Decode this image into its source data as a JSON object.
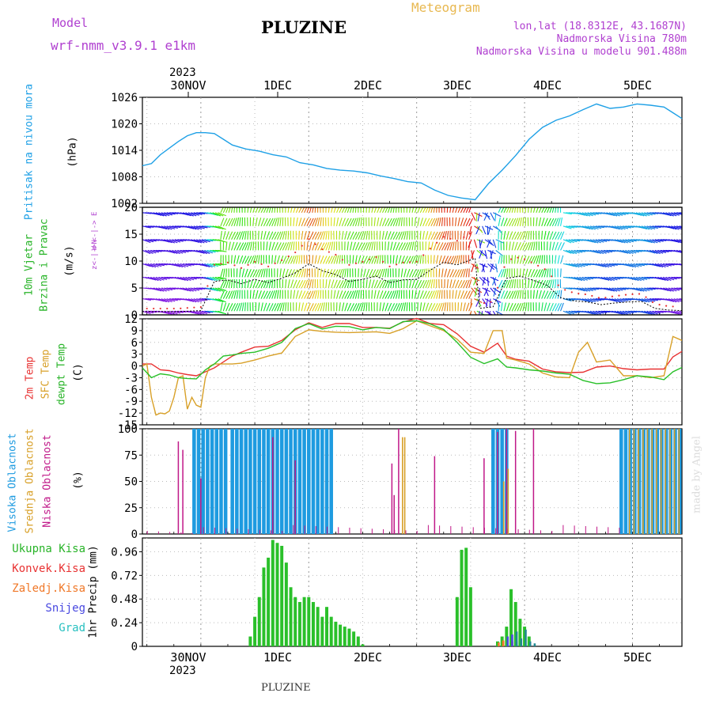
{
  "header": {
    "model_label": "Model",
    "model_name": "wrf-nmm_v3.9.1  e1km",
    "station": "PLUZINE",
    "meteogram": "Meteogram",
    "lonlat": "lon,lat (18.8312E, 43.1687N)",
    "elev": "Nadmorska Visina 780m",
    "model_elev": "Nadmorska Visina u modelu 901.488m",
    "year_top": "2023",
    "year_bottom": "2023",
    "footer_station": "PLUZINE",
    "watermark": "made by Angel"
  },
  "colors": {
    "pressure": "#1ea0e6",
    "temp2m": "#e83232",
    "sfc": "#d8a028",
    "dewpt": "#28c028",
    "cloud_high": "#1e9be0",
    "cloud_mid": "#d8a028",
    "cloud_low": "#c01888",
    "precip": "#2ac02a",
    "label_green": "#28b428",
    "label_red": "#e83232",
    "label_orange": "#f07828",
    "label_blue": "#4848e0",
    "label_teal": "#28c0c0",
    "purple": "#b040d0"
  },
  "labels": {
    "pressure": [
      "Pritisak na nivou mora",
      "(hPa)"
    ],
    "wind": [
      "10m Vjetar",
      "Brzina i Pravac",
      "(m/s)"
    ],
    "compass": "W  <-|->  E",
    "compass2": "z<-|->N",
    "temp": [
      "2m Temp",
      "SFC Temp",
      "dewpt Temp",
      "(C)"
    ],
    "cloud": [
      "Visoka Oblacnost",
      "Srednja Oblacnost",
      "Niska Oblacnost",
      "(%)"
    ],
    "precip_legend": [
      "Ukupna Kisa",
      "Konvek.Kisa",
      "Zaledj.Kisa",
      "Snijeg",
      "Grad"
    ],
    "precip_axis": "1hr Precip (mm)"
  },
  "chart_data": [
    {
      "type": "line",
      "title": "Pritisak na nivou mora",
      "ylabel": "(hPa)",
      "ylim": [
        1002,
        1026
      ],
      "yticks": [
        "1026",
        "1020",
        "1014",
        "1008",
        "1002"
      ],
      "x_days": [
        "30NOV",
        "1DEC",
        "2DEC",
        "3DEC",
        "4DEC",
        "5DEC"
      ],
      "xlim_hours": [
        -13,
        107
      ],
      "series": [
        {
          "name": "Pritisak na nivou mora",
          "x": [
            -13,
            -11,
            -9,
            -7,
            -5,
            -3,
            -1,
            0,
            1,
            3,
            5,
            7,
            10,
            13,
            16,
            19,
            22,
            25,
            28,
            31,
            34,
            37,
            40,
            43,
            46,
            49,
            52,
            55,
            58,
            61,
            64,
            67,
            70,
            73,
            76,
            79,
            82,
            85,
            88,
            91,
            94,
            97,
            100,
            103,
            105,
            107
          ],
          "values": [
            1010.5,
            1011,
            1013,
            1014.5,
            1016,
            1017.3,
            1018,
            1018,
            1018,
            1017.8,
            1016.5,
            1015.2,
            1014.3,
            1013.8,
            1013,
            1012.5,
            1011.2,
            1010.7,
            1009.9,
            1009.5,
            1009.3,
            1008.9,
            1008.2,
            1007.6,
            1006.9,
            1006.6,
            1005,
            1003.8,
            1003.2,
            1002.8,
            1006.5,
            1009.5,
            1012.8,
            1016.5,
            1019.2,
            1020.8,
            1021.8,
            1023.2,
            1024.5,
            1023.5,
            1023.8,
            1024.5,
            1024.2,
            1023.8,
            1022.5,
            1021.2
          ]
        }
      ]
    },
    {
      "type": "line",
      "title": "10m Vjetar",
      "ylabel": "(m/s)",
      "ylim": [
        0,
        20
      ],
      "yticks": [
        "20",
        "15",
        "10",
        "5",
        "0"
      ],
      "series": [
        {
          "name": "Brzina i Pravac",
          "x": [
            -13,
            -5,
            0,
            3,
            6,
            9,
            12,
            15,
            18,
            21,
            24,
            27,
            30,
            33,
            36,
            39,
            42,
            45,
            48,
            51,
            54,
            57,
            60,
            61,
            62,
            65,
            68,
            71,
            74,
            77,
            80,
            83,
            86,
            89,
            92,
            95,
            98,
            101,
            104,
            107
          ],
          "values": [
            0.6,
            0.6,
            0.8,
            6.2,
            6.5,
            5.8,
            6.6,
            6,
            6.8,
            7.8,
            9.5,
            8.2,
            7.5,
            6.2,
            6.6,
            7.2,
            6,
            6.5,
            6.6,
            8.3,
            9.8,
            9.3,
            10.2,
            10.5,
            1.2,
            1.5,
            6.8,
            7.2,
            6.4,
            5.5,
            3.2,
            2.6,
            2.4,
            1.9,
            2.2,
            2.4,
            2.5,
            1.2,
            0.9,
            0.8
          ]
        }
      ]
    },
    {
      "type": "line",
      "title": "Temp",
      "ylabel": "(C)",
      "ylim": [
        -15,
        12
      ],
      "yticks": [
        "12",
        "9",
        "6",
        "3",
        "0",
        "-3",
        "-6",
        "-9",
        "-12",
        "-15"
      ],
      "series": [
        {
          "name": "2m Temp",
          "x": [
            -13,
            -11,
            -9,
            -7,
            -5,
            -3,
            -1,
            1,
            3,
            5,
            7,
            9,
            12,
            15,
            18,
            21,
            24,
            27,
            30,
            33,
            36,
            39,
            42,
            45,
            48,
            51,
            54,
            57,
            60,
            63,
            66,
            68,
            70,
            73,
            76,
            79,
            82,
            85,
            88,
            91,
            94,
            97,
            100,
            103,
            105,
            107
          ],
          "values": [
            0.5,
            0.5,
            -1,
            -1.2,
            -1.8,
            -2.2,
            -2.5,
            -1.5,
            -0.5,
            1,
            2.5,
            3.5,
            4.8,
            5,
            6.5,
            9.2,
            11,
            9.8,
            10.8,
            10.8,
            9.8,
            9.8,
            9.6,
            11.2,
            12.1,
            10.8,
            10.5,
            8.2,
            5,
            3.5,
            5.8,
            2.5,
            1.7,
            1.2,
            -0.8,
            -1.5,
            -1.7,
            -1.6,
            -0.3,
            0,
            -0.7,
            -1,
            -0.8,
            -0.8,
            2.3,
            3.7
          ]
        },
        {
          "name": "SFC Temp",
          "x": [
            -13,
            -12,
            -11,
            -10,
            -9,
            -8,
            -7,
            -6,
            -5,
            -4,
            -3,
            -2,
            -1,
            0,
            1,
            2,
            3,
            5,
            7,
            9,
            12,
            15,
            18,
            21,
            24,
            27,
            30,
            33,
            36,
            39,
            42,
            45,
            48,
            51,
            54,
            57,
            60,
            63,
            65,
            67,
            68,
            70,
            73,
            76,
            79,
            82,
            84,
            86,
            88,
            91,
            94,
            97,
            100,
            103,
            105,
            107
          ],
          "values": [
            0,
            0.5,
            -8,
            -12.5,
            -12,
            -12.2,
            -11.5,
            -8,
            -3,
            -2.5,
            -11,
            -8,
            -10,
            -10.5,
            -3,
            0,
            0.5,
            0.5,
            0.5,
            0.7,
            1.5,
            2.5,
            3.3,
            7.5,
            9.2,
            8.8,
            8.6,
            8.5,
            8.6,
            8.7,
            8.3,
            9.5,
            11.5,
            10.2,
            9,
            6.8,
            3.5,
            3.2,
            9,
            9,
            2,
            1.5,
            0.5,
            -1.8,
            -2.8,
            -3,
            3.5,
            6,
            1,
            1.5,
            -2.5,
            -2.5,
            -3,
            -2.5,
            7.5,
            6.5
          ]
        },
        {
          "name": "dewpt Temp",
          "x": [
            -13,
            -11,
            -9,
            -7,
            -5,
            -3,
            -1,
            1,
            3,
            5,
            7,
            9,
            12,
            15,
            18,
            21,
            24,
            27,
            30,
            33,
            36,
            39,
            42,
            45,
            48,
            51,
            54,
            57,
            60,
            63,
            66,
            68,
            70,
            73,
            76,
            79,
            82,
            85,
            88,
            91,
            94,
            97,
            100,
            103,
            105,
            107
          ],
          "values": [
            -0.5,
            -3,
            -2,
            -2.3,
            -3,
            -3.2,
            -3.3,
            -1,
            0.5,
            2.5,
            2.8,
            3.2,
            3.5,
            4.5,
            6,
            9.5,
            10.8,
            9.4,
            10.1,
            10,
            9.2,
            9.8,
            9.5,
            11.3,
            11.5,
            10.7,
            9.3,
            6,
            2.2,
            0.6,
            1.8,
            -0.3,
            -0.5,
            -1,
            -1.3,
            -1.8,
            -2.1,
            -3.7,
            -4.5,
            -4.3,
            -3.5,
            -2.5,
            -2.8,
            -3.5,
            -1.5,
            -0.4
          ]
        }
      ]
    },
    {
      "type": "bar",
      "title": "Oblacnost",
      "ylabel": "(%)",
      "ylim": [
        0,
        100
      ],
      "yticks": [
        "100",
        "75",
        "50",
        "25",
        "0"
      ],
      "series": [
        {
          "name": "Visoka Oblacnost",
          "ranges_hours": [
            [
              -1.5,
              5.5
            ],
            [
              7,
              29.5
            ],
            [
              65,
              68
            ],
            [
              93.5,
              107
            ]
          ],
          "value": 100
        },
        {
          "name": "Srednja Oblacnost",
          "hours": [
            44.5,
            45,
            67,
            68,
            95,
            96,
            97,
            98,
            99,
            100,
            101,
            102,
            103,
            104,
            105,
            106
          ],
          "values": [
            92,
            92,
            50,
            62,
            100,
            100,
            100,
            100,
            100,
            100,
            100,
            100,
            100,
            100,
            100,
            100
          ]
        },
        {
          "name": "Niska Oblacnost",
          "hours": [
            -5,
            -4,
            0,
            16,
            21,
            42.5,
            43,
            44,
            52,
            63,
            66,
            68,
            70,
            74
          ],
          "values": [
            88,
            80,
            53,
            92,
            70,
            67,
            37,
            100,
            74,
            72,
            97,
            100,
            98,
            100
          ]
        }
      ]
    },
    {
      "type": "bar",
      "title": "1hr Precip",
      "ylabel": "1hr Precip (mm)",
      "ylim": [
        0,
        1.1
      ],
      "yticks": [
        "0.96",
        "0.72",
        "0.48",
        "0.24",
        "0"
      ],
      "series": [
        {
          "name": "Ukupna Kisa",
          "x": [
            11,
            12,
            13,
            14,
            15,
            16,
            17,
            18,
            19,
            20,
            21,
            22,
            23,
            24,
            25,
            26,
            27,
            28,
            29,
            30,
            31,
            32,
            33,
            34,
            35,
            36,
            57,
            58,
            59,
            60,
            66,
            67,
            68,
            69,
            70,
            71,
            72,
            73
          ],
          "values": [
            0.1,
            0.3,
            0.5,
            0.8,
            0.9,
            1.08,
            1.05,
            1.02,
            0.85,
            0.6,
            0.5,
            0.45,
            0.5,
            0.5,
            0.45,
            0.4,
            0.3,
            0.4,
            0.3,
            0.25,
            0.22,
            0.2,
            0.18,
            0.15,
            0.1,
            0.02,
            0.5,
            0.98,
            1.0,
            0.6,
            0.05,
            0.1,
            0.2,
            0.58,
            0.45,
            0.28,
            0.2,
            0.1
          ]
        },
        {
          "name": "Konvek.Kisa",
          "x": [
            67,
            68,
            69
          ],
          "values": [
            0.05,
            0.1,
            0.05
          ]
        },
        {
          "name": "Zaledj.Kisa",
          "x": [
            66,
            67
          ],
          "values": [
            0.04,
            0.06
          ]
        },
        {
          "name": "Snijeg",
          "x": [
            68,
            69,
            70
          ],
          "values": [
            0.1,
            0.12,
            0.05
          ]
        },
        {
          "name": "Grad",
          "x": [
            70,
            71,
            72,
            73,
            74
          ],
          "values": [
            0.15,
            0.08,
            0.17,
            0.05,
            0.03
          ]
        }
      ]
    }
  ]
}
